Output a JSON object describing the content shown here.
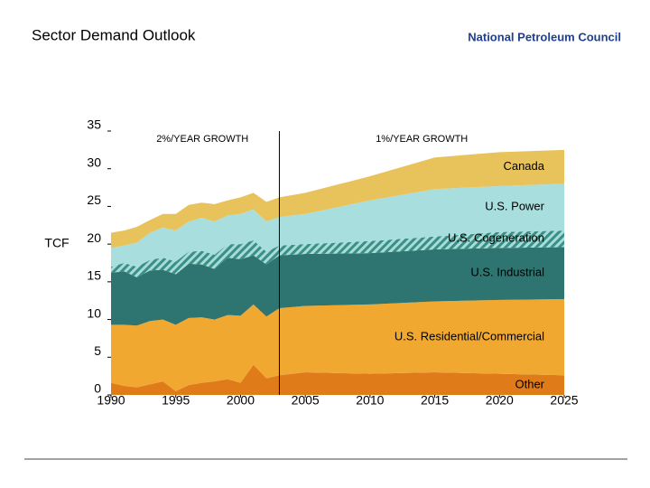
{
  "header": {
    "title": "Sector Demand Outlook",
    "org": "National Petroleum Council"
  },
  "chart_data": {
    "type": "stacked-area",
    "y_label": "TCF",
    "annotations": [
      "2%/YEAR GROWTH",
      "1%/YEAR GROWTH"
    ],
    "divider": 2003,
    "x": [
      1990,
      1991,
      1992,
      1993,
      1994,
      1995,
      1996,
      1997,
      1998,
      1999,
      2000,
      2001,
      2002,
      2003,
      2005,
      2010,
      2015,
      2020,
      2025
    ],
    "xlim": [
      1990,
      2025
    ],
    "xticks": [
      1990,
      1995,
      2000,
      2005,
      2010,
      2015,
      2020,
      2025
    ],
    "ylim": [
      0,
      35
    ],
    "yticks": [
      0,
      5,
      10,
      15,
      20,
      25,
      30,
      35
    ],
    "series": [
      {
        "name": "Other",
        "color": "#e07b1a",
        "values": [
          1.6,
          1.2,
          1.0,
          1.4,
          1.8,
          0.5,
          1.3,
          1.6,
          1.8,
          2.1,
          1.6,
          4.0,
          2.2,
          2.6,
          3.0,
          2.8,
          3.0,
          2.8,
          2.6
        ]
      },
      {
        "name": "U.S. Residential/Commercial",
        "color": "#f0a830",
        "values": [
          7.7,
          8.1,
          8.2,
          8.4,
          8.2,
          8.8,
          8.9,
          8.7,
          8.2,
          8.5,
          8.9,
          8.0,
          8.2,
          8.9,
          8.8,
          9.2,
          9.4,
          9.8,
          10.1
        ]
      },
      {
        "name": "U.S. Industrial",
        "color": "#2e7470",
        "values": [
          6.9,
          7.1,
          6.4,
          6.7,
          6.6,
          6.7,
          7.2,
          7.0,
          6.7,
          7.6,
          7.5,
          6.5,
          6.9,
          7.0,
          6.9,
          6.8,
          6.9,
          6.9,
          6.9
        ]
      },
      {
        "name": "U.S. Cogeneration",
        "color": "#3a8f86",
        "hatch": true,
        "values": [
          0.8,
          1.1,
          1.4,
          1.4,
          1.6,
          1.7,
          1.6,
          1.8,
          1.9,
          1.8,
          2.0,
          2.0,
          1.7,
          1.3,
          1.3,
          1.6,
          1.7,
          2.1,
          2.2
        ]
      },
      {
        "name": "U.S. Power",
        "color": "#a9dede",
        "values": [
          2.5,
          2.3,
          3.2,
          3.6,
          4.0,
          4.1,
          4.0,
          4.4,
          4.4,
          3.8,
          4.0,
          4.1,
          4.0,
          3.8,
          4.0,
          5.4,
          6.3,
          6.1,
          6.2
        ]
      },
      {
        "name": "Canada",
        "color": "#e8c35c",
        "values": [
          2.0,
          2.0,
          2.1,
          1.7,
          1.8,
          2.2,
          2.2,
          2.0,
          2.3,
          2.0,
          2.2,
          2.2,
          2.6,
          2.6,
          2.8,
          3.2,
          4.2,
          4.5,
          4.5
        ]
      }
    ]
  }
}
